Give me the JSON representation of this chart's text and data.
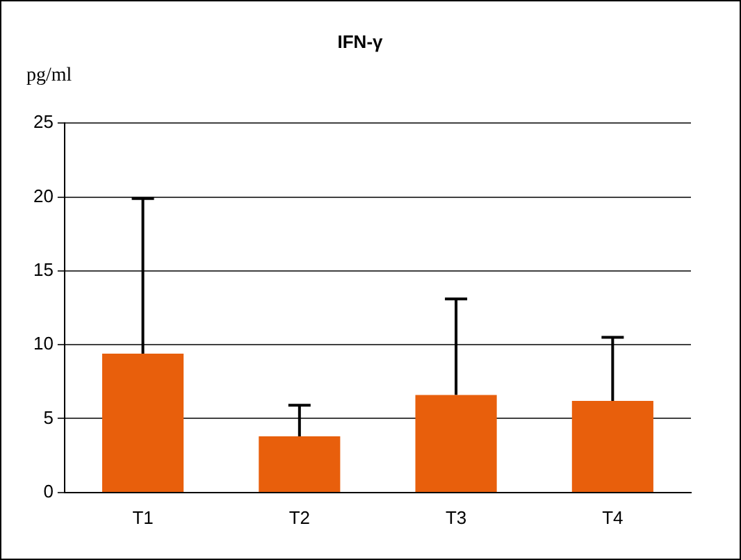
{
  "chart_data": {
    "type": "bar",
    "title": "IFN-γ",
    "ylabel": "pg/ml",
    "categories": [
      "T1",
      "T2",
      "T3",
      "T4"
    ],
    "values": [
      9.4,
      3.8,
      6.6,
      6.2
    ],
    "color": "#e85f0c",
    "errors": [
      [
        9.4,
        19.9
      ],
      [
        3.8,
        5.9
      ],
      [
        6.6,
        13.1
      ],
      [
        6.2,
        10.5
      ]
    ],
    "ylim": [
      0,
      25
    ],
    "yticks": [
      0,
      5,
      10,
      15,
      20,
      25
    ],
    "grid": "y",
    "legend": false
  }
}
